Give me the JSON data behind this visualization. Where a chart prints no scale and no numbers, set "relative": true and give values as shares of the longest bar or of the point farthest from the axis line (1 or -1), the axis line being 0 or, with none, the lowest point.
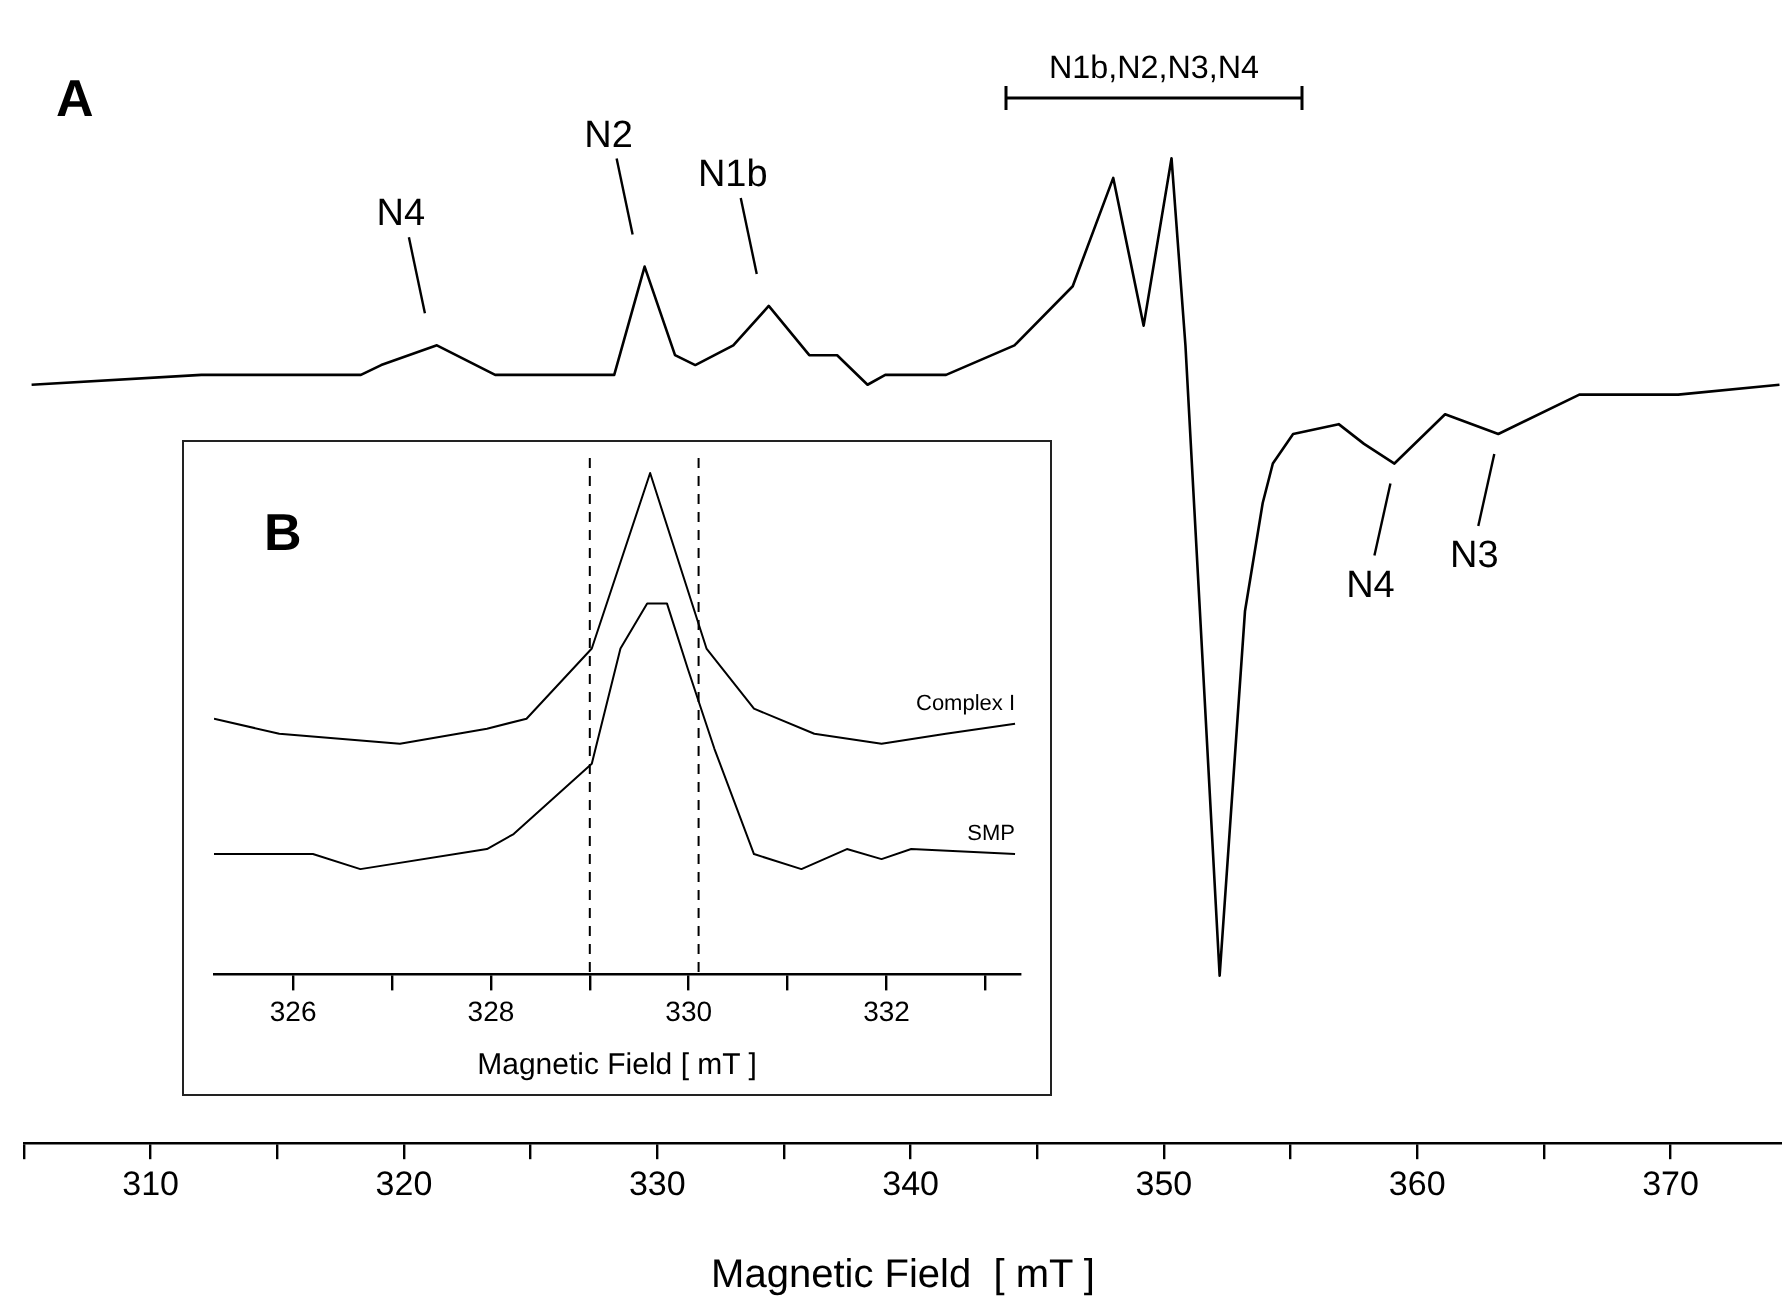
{
  "chart_data": [
    {
      "type": "line",
      "relative": true,
      "xlabel": "Magnetic Field  [ mT ]",
      "x": [
        305.3,
        312.0,
        318.3,
        319.1,
        321.3,
        323.6,
        327.0,
        328.3,
        329.5,
        330.7,
        331.5,
        333.0,
        334.4,
        336.0,
        337.1,
        338.3,
        339.0,
        341.4,
        344.1,
        346.4,
        348.0,
        349.2,
        350.3,
        350.85,
        351.4,
        352.2,
        353.2,
        353.9,
        354.3,
        355.1,
        356.9,
        357.9,
        359.1,
        361.1,
        363.2,
        366.4,
        370.3,
        374.3
      ],
      "values": [
        0.77,
        0.78,
        0.78,
        0.79,
        0.81,
        0.78,
        0.78,
        0.78,
        0.89,
        0.8,
        0.79,
        0.81,
        0.85,
        0.8,
        0.8,
        0.77,
        0.78,
        0.78,
        0.81,
        0.87,
        0.98,
        0.83,
        1.0,
        0.81,
        0.55,
        0.17,
        0.54,
        0.65,
        0.69,
        0.72,
        0.73,
        0.71,
        0.69,
        0.74,
        0.72,
        0.76,
        0.76,
        0.77
      ],
      "color": "#000000",
      "marker": "none",
      "legend": false,
      "grid": false,
      "xlim": [
        305,
        374.4
      ],
      "xticks": [
        {
          "value": 305,
          "label": null
        },
        310,
        {
          "value": 315,
          "label": null
        },
        320,
        {
          "value": 325,
          "label": null
        },
        330,
        {
          "value": 335,
          "label": null
        },
        340,
        {
          "value": 345,
          "label": null
        },
        350,
        {
          "value": 355,
          "label": null
        },
        360,
        {
          "value": 365,
          "label": null
        },
        370
      ],
      "annotations": [
        "A",
        "N1b,N2,N3,N4",
        {
          "text": "N4",
          "x": 321.3,
          "y": 0.81
        },
        {
          "text": "N2",
          "x": 329.5,
          "y": 0.89
        },
        {
          "text": "N1b",
          "x": 334.4,
          "y": 0.85
        },
        {
          "text": "N4",
          "x": 359.1,
          "y": 0.69
        },
        {
          "text": "N3",
          "x": 363.2,
          "y": 0.72
        }
      ]
    },
    {
      "type": "line",
      "relative": true,
      "xlabel": "Magnetic Field [ mT ]",
      "marker": "none",
      "legend": false,
      "grid": false,
      "series": [
        {
          "name": "Complex I",
          "color": "#000000",
          "x": [
            325.2,
            325.86,
            327.08,
            327.96,
            328.36,
            329.02,
            329.61,
            330.18,
            330.66,
            331.27,
            331.95,
            332.6,
            333.3
          ],
          "values": [
            0.51,
            0.48,
            0.46,
            0.49,
            0.51,
            0.65,
            1.0,
            0.65,
            0.53,
            0.48,
            0.46,
            0.48,
            0.5
          ]
        },
        {
          "name": "SMP",
          "color": "#000000",
          "x": [
            325.2,
            326.2,
            326.68,
            327.96,
            328.23,
            329.02,
            329.31,
            329.58,
            329.78,
            329.99,
            330.26,
            330.66,
            331.14,
            331.6,
            331.95,
            332.25,
            333.3
          ],
          "values": [
            0.24,
            0.24,
            0.21,
            0.25,
            0.28,
            0.42,
            0.65,
            0.74,
            0.74,
            0.61,
            0.45,
            0.24,
            0.21,
            0.25,
            0.23,
            0.25,
            0.24
          ]
        }
      ],
      "xlim": [
        325.2,
        333.35
      ],
      "xticks": [
        326,
        {
          "value": 327,
          "label": null
        },
        328,
        {
          "value": 329,
          "label": null
        },
        330,
        {
          "value": 331,
          "label": null
        },
        332,
        {
          "value": 333,
          "label": null
        }
      ],
      "ref_lines": [
        {
          "axis": "x",
          "value": 329.0,
          "line_style": "dashed"
        },
        {
          "axis": "x",
          "value": 330.1,
          "line_style": "dashed"
        }
      ],
      "annotations": [
        "B"
      ]
    }
  ]
}
